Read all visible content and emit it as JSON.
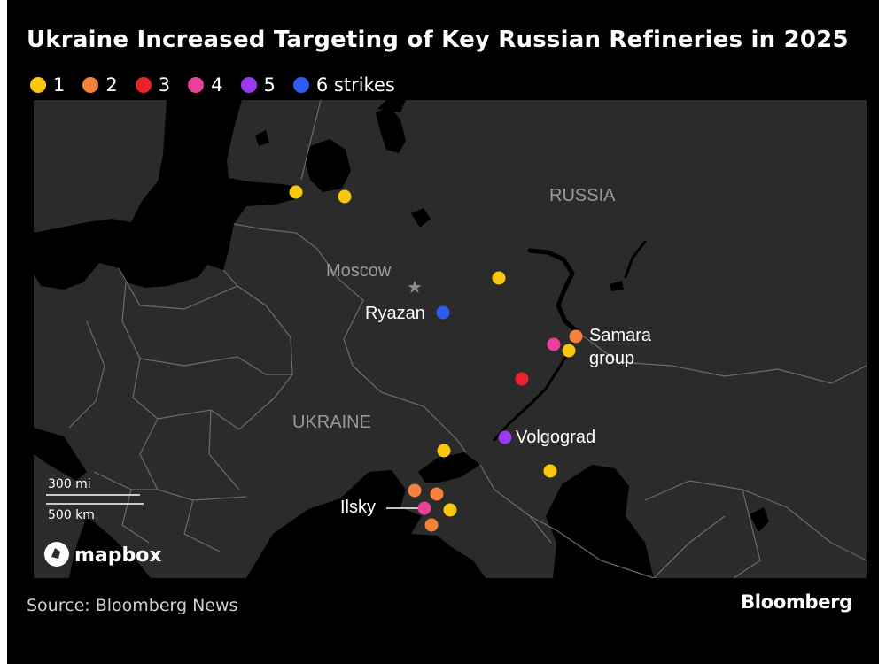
{
  "title": "Ukraine Increased Targeting of Key Russian Refineries in 2025",
  "legend": [
    {
      "label": "1",
      "color": "#f9c80e"
    },
    {
      "label": "2",
      "color": "#f7813a"
    },
    {
      "label": "3",
      "color": "#e8232e"
    },
    {
      "label": "4",
      "color": "#ea3f9b"
    },
    {
      "label": "5",
      "color": "#9b3aee"
    },
    {
      "label": "6 strikes",
      "color": "#2d5cf0"
    }
  ],
  "map": {
    "country_labels": {
      "russia": "RUSSIA",
      "ukraine": "UKRAINE"
    },
    "capital_label": "Moscow",
    "site_labels": {
      "ryazan": "Ryazan",
      "samara_line1": "Samara",
      "samara_line2": "group",
      "volgograd": "Volgograd",
      "ilsky": "Ilsky"
    },
    "scale": {
      "miles": "300 mi",
      "km": "500 km"
    },
    "mapbox_label": "mapbox",
    "sites": [
      {
        "strikes": 1
      },
      {
        "strikes": 1
      },
      {
        "strikes": 1
      },
      {
        "strikes": 6
      },
      {
        "strikes": 4
      },
      {
        "strikes": 2
      },
      {
        "strikes": 1
      },
      {
        "strikes": 3
      },
      {
        "strikes": 5
      },
      {
        "strikes": 1
      },
      {
        "strikes": 1
      },
      {
        "strikes": 2
      },
      {
        "strikes": 2
      },
      {
        "strikes": 4
      },
      {
        "strikes": 1
      },
      {
        "strikes": 2
      }
    ]
  },
  "source": "Source: Bloomberg News",
  "brand": "Bloomberg"
}
